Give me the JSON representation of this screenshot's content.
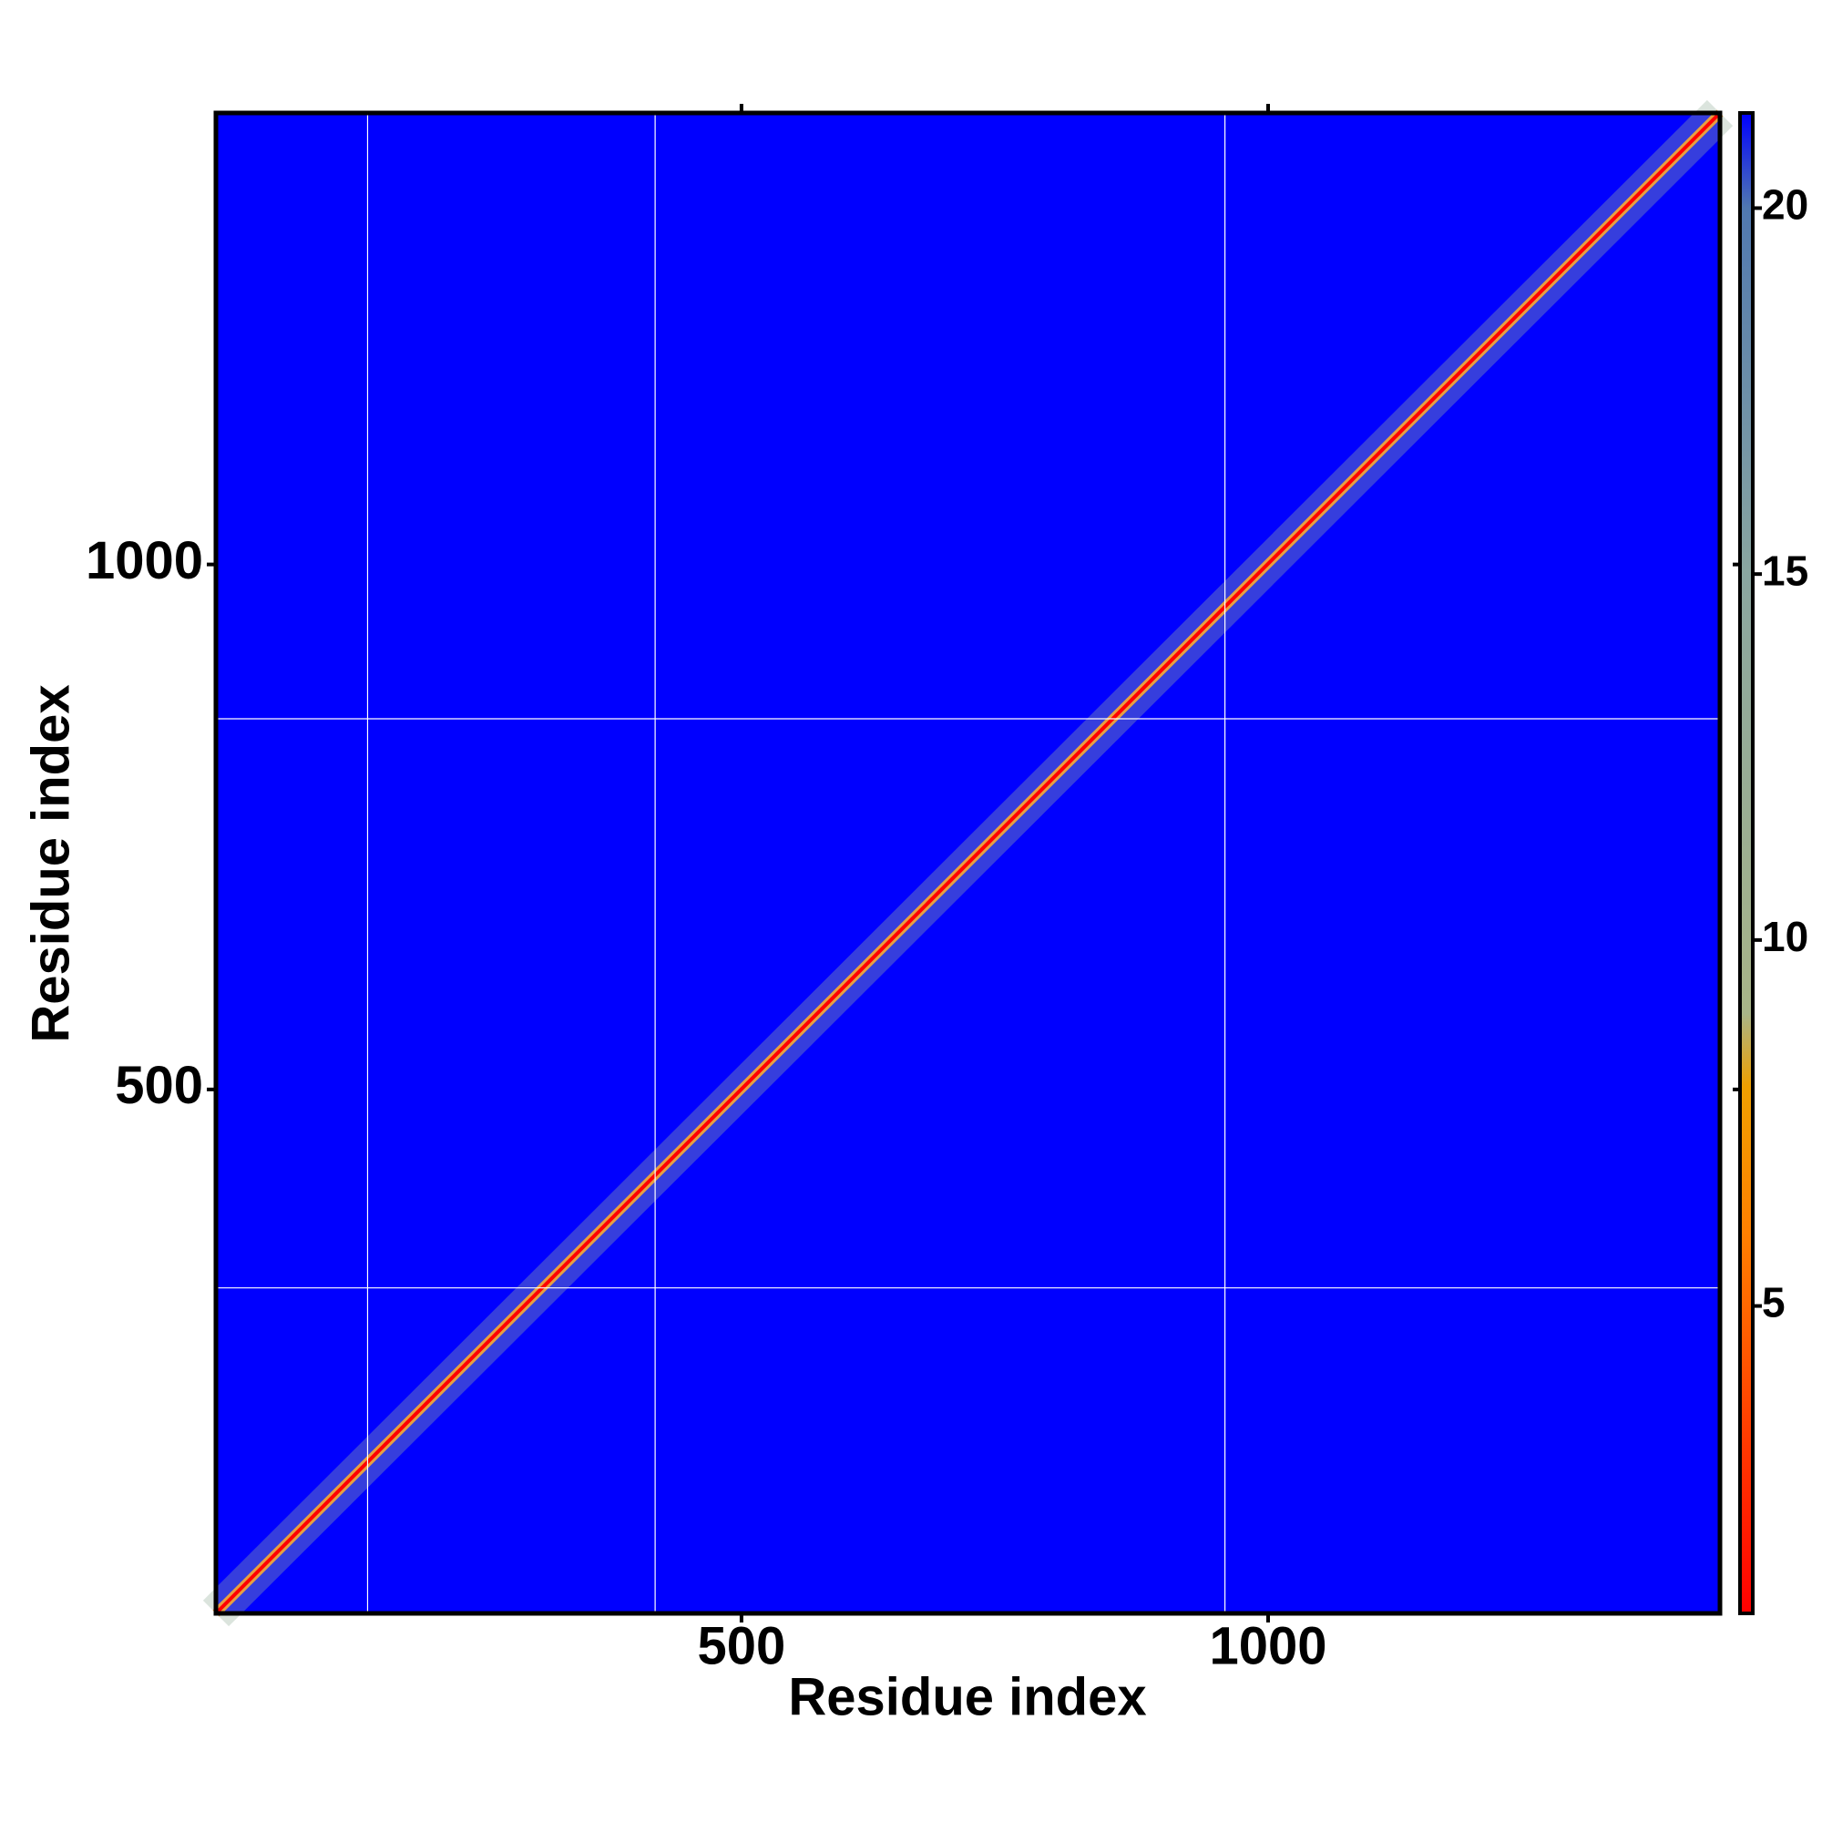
{
  "chart_data": {
    "type": "heatmap",
    "x_label": "Residue index",
    "y_label": "Residue index",
    "xlim": [
      1,
      1429
    ],
    "ylim": [
      1,
      1430
    ],
    "xticks": [
      500,
      1000
    ],
    "yticks": [
      500,
      1000
    ],
    "background_color": "#0000ff",
    "vlines": [
      145,
      418,
      959
    ],
    "hlines": [
      311,
      853
    ],
    "diagonal": true,
    "colorbar": {
      "lim": [
        0.8,
        21.3
      ],
      "ticks": [
        5,
        10,
        15,
        20
      ],
      "stops": [
        [
          0.8,
          "#ff0000"
        ],
        [
          6,
          "#ff8000"
        ],
        [
          8,
          "#f0a000"
        ],
        [
          9,
          "#a8b488"
        ],
        [
          15,
          "#8aa6a0"
        ],
        [
          20,
          "#5078b0"
        ],
        [
          21.3,
          "#0000ff"
        ]
      ]
    }
  }
}
